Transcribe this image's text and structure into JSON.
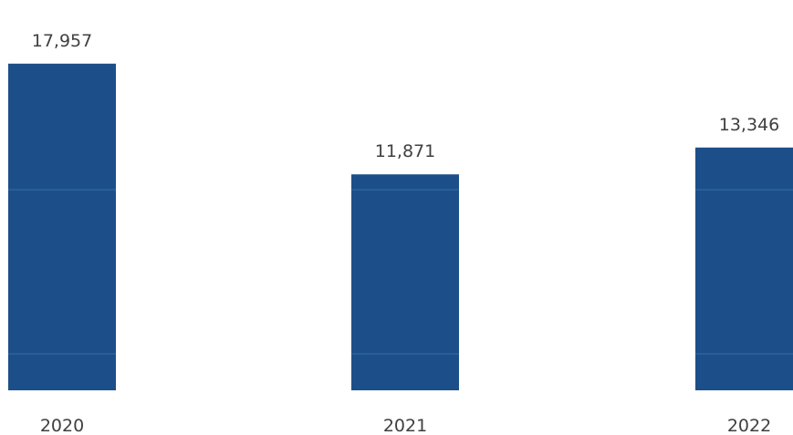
{
  "chart_data": {
    "type": "bar",
    "categories": [
      "2020",
      "2021",
      "2022"
    ],
    "values": [
      17957,
      11871,
      13346
    ],
    "value_labels": [
      "17,957",
      "11,871",
      "13,346"
    ],
    "ylim": [
      0,
      19200
    ],
    "grid": false,
    "legend": "none",
    "colors": {
      "bar": "#1c4f8a",
      "bar_band": "#2f6ea0",
      "text": "#404040",
      "background": "#ffffff"
    }
  }
}
